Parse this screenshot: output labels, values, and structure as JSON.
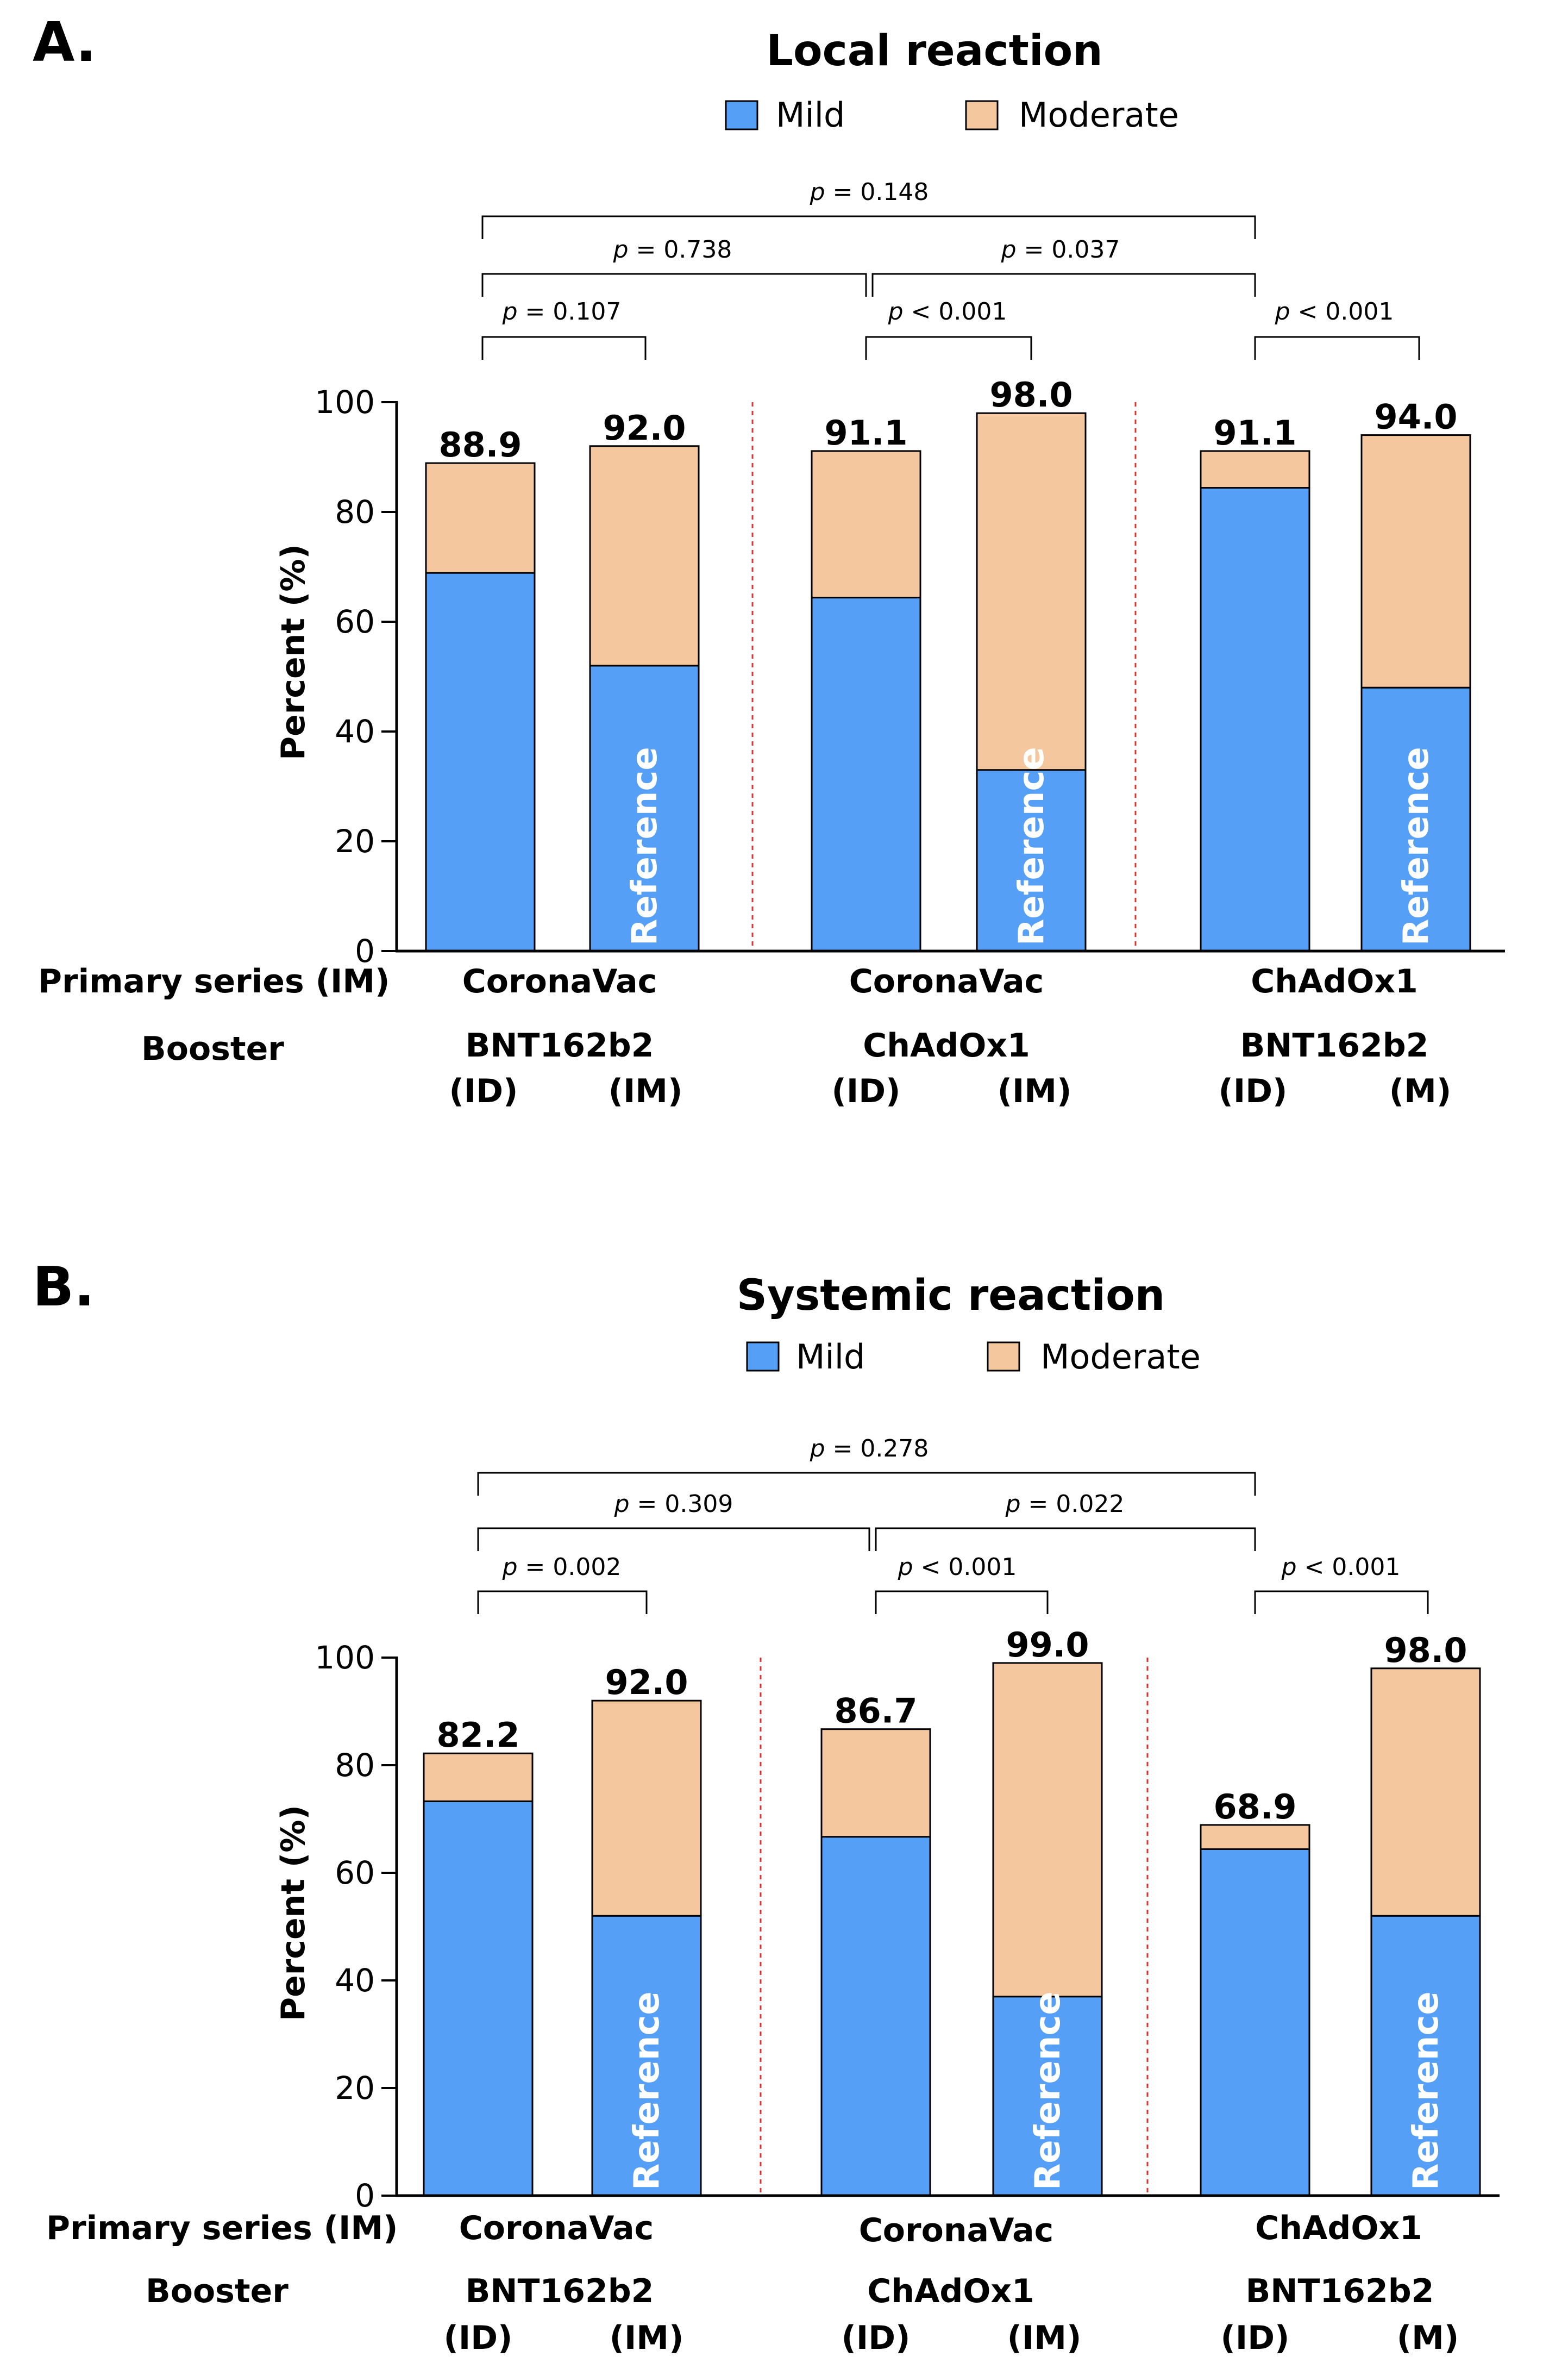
{
  "panels": [
    {
      "letter": "A.",
      "title": "Local reaction",
      "legend": [
        {
          "label": "Mild",
          "color": "#559ff6"
        },
        {
          "label": "Moderate",
          "color": "#f5c79e"
        }
      ],
      "ylabel": "Percent (%)",
      "yticks": [
        "0",
        "20",
        "40",
        "60",
        "80",
        "100"
      ],
      "row_labels": {
        "primary": "Primary series (IM)",
        "booster": "Booster"
      },
      "groups": [
        {
          "primary": "CoronaVac",
          "booster": "BNT162b2",
          "routes": [
            "(ID)",
            "(IM)"
          ]
        },
        {
          "primary": "CoronaVac",
          "booster": "ChAdOx1",
          "routes": [
            "(ID)",
            "(IM)"
          ]
        },
        {
          "primary": "ChAdOx1",
          "booster": "BNT162b2",
          "routes": [
            "(ID)",
            "(M)"
          ]
        }
      ],
      "total_labels": [
        "88.9",
        "92.0",
        "91.1",
        "98.0",
        "91.1",
        "94.0"
      ],
      "reference_label": "Reference",
      "p_values": [
        {
          "label": "p",
          "text": " = 0.148"
        },
        {
          "label": "p",
          "text": " = 0.738"
        },
        {
          "label": "p",
          "text": " = 0.037"
        },
        {
          "label": "p",
          "text": " = 0.107"
        },
        {
          "label": "p",
          "text": " < 0.001"
        },
        {
          "label": "p",
          "text": " < 0.001"
        }
      ]
    },
    {
      "letter": "B.",
      "title": "Systemic reaction",
      "legend": [
        {
          "label": "Mild",
          "color": "#559ff6"
        },
        {
          "label": "Moderate",
          "color": "#f5c79e"
        }
      ],
      "ylabel": "Percent (%)",
      "yticks": [
        "0",
        "20",
        "40",
        "60",
        "80",
        "100"
      ],
      "row_labels": {
        "primary": "Primary series (IM)",
        "booster": "Booster"
      },
      "groups": [
        {
          "primary": "CoronaVac",
          "booster": "BNT162b2",
          "routes": [
            "(ID)",
            "(IM)"
          ]
        },
        {
          "primary": "CoronaVac",
          "booster": "ChAdOx1",
          "routes": [
            "(ID)",
            "(IM)"
          ]
        },
        {
          "primary": "ChAdOx1",
          "booster": "BNT162b2",
          "routes": [
            "(ID)",
            "(M)"
          ]
        }
      ],
      "total_labels": [
        "82.2",
        "92.0",
        "86.7",
        "99.0",
        "68.9",
        "98.0"
      ],
      "reference_label": "Reference",
      "p_values": [
        {
          "label": "p",
          "text": " = 0.278"
        },
        {
          "label": "p",
          "text": " = 0.309"
        },
        {
          "label": "p",
          "text": " = 0.022"
        },
        {
          "label": "p",
          "text": " = 0.002"
        },
        {
          "label": "p",
          "text": " < 0.001"
        },
        {
          "label": "p",
          "text": " < 0.001"
        }
      ]
    }
  ],
  "chart_data": [
    {
      "type": "bar",
      "stacked": true,
      "title": "Local reaction",
      "xlabel": "",
      "ylabel": "Percent (%)",
      "ylim": [
        0,
        100
      ],
      "grid": false,
      "categories": [
        "CoronaVac / BNT162b2 (ID)",
        "CoronaVac / BNT162b2 (IM)",
        "CoronaVac / ChAdOx1 (ID)",
        "CoronaVac / ChAdOx1 (IM)",
        "ChAdOx1 / BNT162b2 (ID)",
        "ChAdOx1 / BNT162b2 (M)"
      ],
      "series": [
        {
          "name": "Mild",
          "values": [
            68.9,
            52.0,
            64.4,
            33.0,
            84.4,
            48.0
          ]
        },
        {
          "name": "Moderate",
          "values": [
            20.0,
            40.0,
            26.7,
            65.0,
            6.7,
            46.0
          ]
        }
      ],
      "totals": [
        88.9,
        92.0,
        91.1,
        98.0,
        91.1,
        94.0
      ],
      "reference_bars": [
        1,
        3,
        5
      ],
      "comparisons": [
        {
          "bars": [
            0,
            4
          ],
          "p": "0.148"
        },
        {
          "bars": [
            0,
            2
          ],
          "p": "0.738"
        },
        {
          "bars": [
            2,
            4
          ],
          "p": "0.037"
        },
        {
          "bars": [
            0,
            1
          ],
          "p": "0.107"
        },
        {
          "bars": [
            2,
            3
          ],
          "p": "< 0.001"
        },
        {
          "bars": [
            4,
            5
          ],
          "p": "< 0.001"
        }
      ]
    },
    {
      "type": "bar",
      "stacked": true,
      "title": "Systemic reaction",
      "xlabel": "",
      "ylabel": "Percent (%)",
      "ylim": [
        0,
        100
      ],
      "grid": false,
      "categories": [
        "CoronaVac / BNT162b2 (ID)",
        "CoronaVac / BNT162b2 (IM)",
        "CoronaVac / ChAdOx1 (ID)",
        "CoronaVac / ChAdOx1 (IM)",
        "ChAdOx1 / BNT162b2 (ID)",
        "ChAdOx1 / BNT162b2 (M)"
      ],
      "series": [
        {
          "name": "Mild",
          "values": [
            73.3,
            52.0,
            66.7,
            37.0,
            64.4,
            52.0
          ]
        },
        {
          "name": "Moderate",
          "values": [
            8.9,
            40.0,
            20.0,
            62.0,
            4.5,
            46.0
          ]
        }
      ],
      "totals": [
        82.2,
        92.0,
        86.7,
        99.0,
        68.9,
        98.0
      ],
      "reference_bars": [
        1,
        3,
        5
      ],
      "comparisons": [
        {
          "bars": [
            0,
            4
          ],
          "p": "0.278"
        },
        {
          "bars": [
            0,
            2
          ],
          "p": "0.309"
        },
        {
          "bars": [
            2,
            4
          ],
          "p": "0.022"
        },
        {
          "bars": [
            0,
            1
          ],
          "p": "0.002"
        },
        {
          "bars": [
            2,
            3
          ],
          "p": "< 0.001"
        },
        {
          "bars": [
            4,
            5
          ],
          "p": "< 0.001"
        }
      ]
    }
  ]
}
